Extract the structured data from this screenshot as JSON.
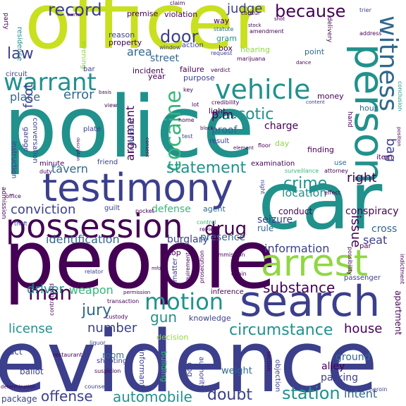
{
  "palette": {
    "dark_purple": "#440154",
    "indigo": "#3b3f8c",
    "blue": "#31688e",
    "teal": "#21918c",
    "green": "#35b779",
    "lime": "#90d743",
    "yellow": "#c8e020"
  },
  "words": {
    "officer": "officer",
    "police": "police",
    "evidence": "evidence",
    "people": "people",
    "car": "car",
    "testimony": "testimony",
    "possession": "possession",
    "person": "person",
    "search": "search",
    "arrest": "arrest",
    "vehicle": "vehicle",
    "witness": "witness",
    "warrant": "warrant",
    "cocaine": "cocaine",
    "because": "because",
    "record": "record",
    "narcotic": "narcotic",
    "motion": "motion",
    "crime": "crime",
    "man": "man",
    "statement": "statement",
    "substance": "substance",
    "circumstance": "circumstance",
    "station": "station",
    "automobile": "automobile",
    "offense": "offense",
    "doubt": "doubt",
    "drug": "drug",
    "jury": "jury",
    "law": "law",
    "door": "door",
    "judge": "judge",
    "conviction": "conviction",
    "identification": "identification",
    "driver": "driver",
    "license": "license",
    "number": "number",
    "house": "house",
    "gun": "gun",
    "error": "error",
    "tavern": "tavern",
    "information": "information",
    "issue": "issue",
    "right": "right",
    "bag": "bag",
    "argument": "argument",
    "foot": "foot",
    "area": "area",
    "street": "street",
    "place": "place",
    "weapon": "weapon",
    "location": "location",
    "seizure": "seizure",
    "seat": "seat",
    "intent": "intent",
    "ground": "ground",
    "alley": "alley",
    "parking": "parking",
    "defense": "defense",
    "burglary": "burglary",
    "presence": "presence",
    "p.m.": "p.m.",
    "proof": "proof",
    "charge": "charge",
    "cross": "cross",
    "conspiracy": "conspiracy",
    "conduct": "conduct",
    "rule": "rule",
    "apartment": "apartment",
    "weight": "weight",
    "room": "room",
    "act": "act",
    "ballot": "ballot",
    "package": "package",
    "hearing": "hearing",
    "point": "point",
    "hour": "hour",
    "money": "money",
    "light": "light",
    "day": "day",
    "finding": "finding",
    "result": "result",
    "stop": "stop",
    "knowledge": "knowledge",
    "decision": "decision",
    "building": "building",
    "informant": "informant",
    "dog": "dog",
    "agent": "agent",
    "year": "year",
    "incident": "incident",
    "purpose": "purpose",
    "failure": "failure",
    "property": "property",
    "reason": "reason",
    "premise": "premise",
    "violation": "violation",
    "statute": "statute",
    "box": "box",
    "gram": "gram",
    "action": "action",
    "way": "way",
    "evening": "evening",
    "residence": "residence",
    "circuit": "circuit",
    "bar": "bar",
    "window": "window",
    "marijuana": "marijuana",
    "request": "request",
    "amendment": "amendment",
    "verdict": "verdict",
    "plate": "plate",
    "garage": "garage",
    "conversation": "conversation",
    "instruction": "instruction",
    "minute": "minute",
    "friend": "friend",
    "individual": "individual",
    "examination": "examination",
    "use": "use",
    "item": "item",
    "effect": "effect",
    "night": "night",
    "guilt": "guilt",
    "pocket": "pocket",
    "admission": "admission",
    "office": "office",
    "theft": "theft",
    "control": "control",
    "review": "review",
    "commission": "commission",
    "matter": "matter",
    "requirement": "requirement",
    "prosecution": "prosecution",
    "chain": "chain",
    "inference": "inference",
    "passenger": "passenger",
    "indictment": "indictment",
    "par": "par",
    "possibility": "possibility",
    "relator": "relator",
    "contraband": "contraband",
    "transaction": "transaction",
    "custody": "custody",
    "liquor": "liquor",
    "counsel": "counsel",
    "shooting": "shooting",
    "restaurant": "restaurant",
    "suspicion": "suspicion",
    "authority": "authority",
    "section": "section",
    "objection": "objection",
    "heroin": "heroin",
    "determination": "determination",
    "attorney": "attorney",
    "surveillance": "surveillance",
    "duty": "duty",
    "test": "test",
    "floor": "floor",
    "element": "element",
    "home": "home",
    "content": "content",
    "position": "position",
    "conclusion": "conclusion",
    "credibility": "credibility",
    "key": "key",
    "hand": "hand",
    "party": "party",
    "owner": "owner",
    "claim": "claim",
    "concur": "concur",
    "stock": "stock",
    "shot": "shot",
    "trier": "trier",
    "address": "address",
    "delivery": "delivery",
    "lot": "lot",
    "view": "view",
    "basis": "basis",
    "consent": "consent",
    "description": "description",
    "block": "block",
    "mfd": "mfd",
    "permission": "permission",
    "dance": "dance"
  }
}
